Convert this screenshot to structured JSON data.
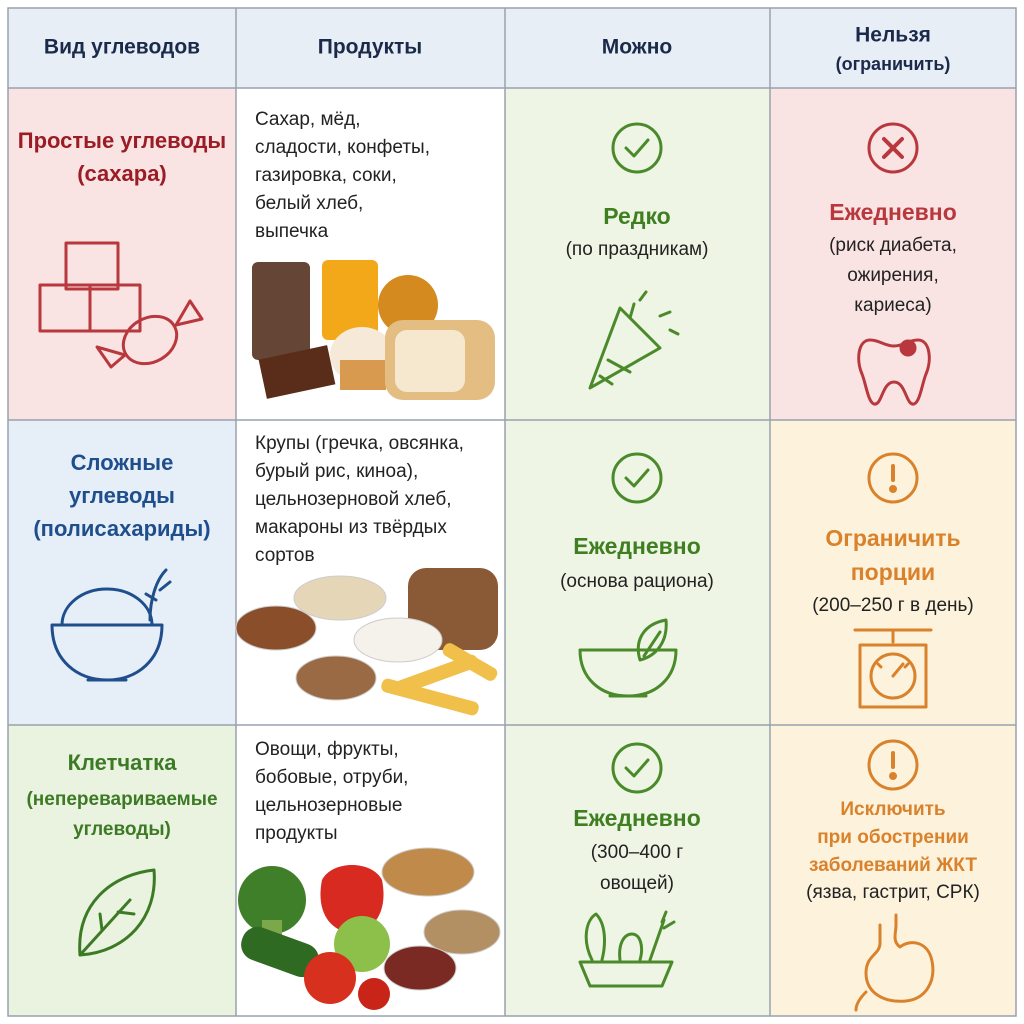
{
  "header": {
    "columns": [
      [
        "Вид углеводов"
      ],
      [
        "Продукты"
      ],
      [
        "Можно"
      ],
      [
        "Нельзя",
        "(ограничить)"
      ]
    ]
  },
  "rows": [
    {
      "type": [
        "Простые углеводы",
        "(сахара)"
      ],
      "type_note": [],
      "products": [
        "Сахар, мёд,",
        "сладости, конфеты,",
        "газировка, соки,",
        "белый хлеб,",
        "выпечка"
      ],
      "allowed": [
        "Редко"
      ],
      "allowed_note": [
        "(по праздникам)"
      ],
      "forbidden": [
        "Ежедневно"
      ],
      "forbidden_note": [
        "(риск диабета,",
        "ожирения,",
        "кариеса)"
      ]
    },
    {
      "type": [
        "Сложные",
        "углеводы",
        "(полисахариды)"
      ],
      "type_note": [],
      "products": [
        "Крупы (гречка, овсянка,",
        "бурый рис, киноа),",
        "цельнозерновой хлеб,",
        "макароны из твёрдых",
        "сортов"
      ],
      "allowed": [
        "Ежедневно"
      ],
      "allowed_note": [
        "(основа рациона)"
      ],
      "forbidden": [
        "Ограничить",
        "порции"
      ],
      "forbidden_note": [
        "(200–250 г в день)"
      ]
    },
    {
      "type": [
        "Клетчатка"
      ],
      "type_note": [
        "(неперевариваемые",
        "углеводы)"
      ],
      "products": [
        "Овощи, фрукты,",
        "бобовые, отруби,",
        "цельнозерновые",
        "продукты"
      ],
      "allowed": [
        "Ежедневно"
      ],
      "allowed_note": [
        "(300–400 г",
        "овощей)"
      ],
      "forbidden": [
        "Исключить",
        "при обострении",
        "заболеваний ЖКТ"
      ],
      "forbidden_note": [
        "(язва, гастрит, СРК)"
      ]
    }
  ]
}
